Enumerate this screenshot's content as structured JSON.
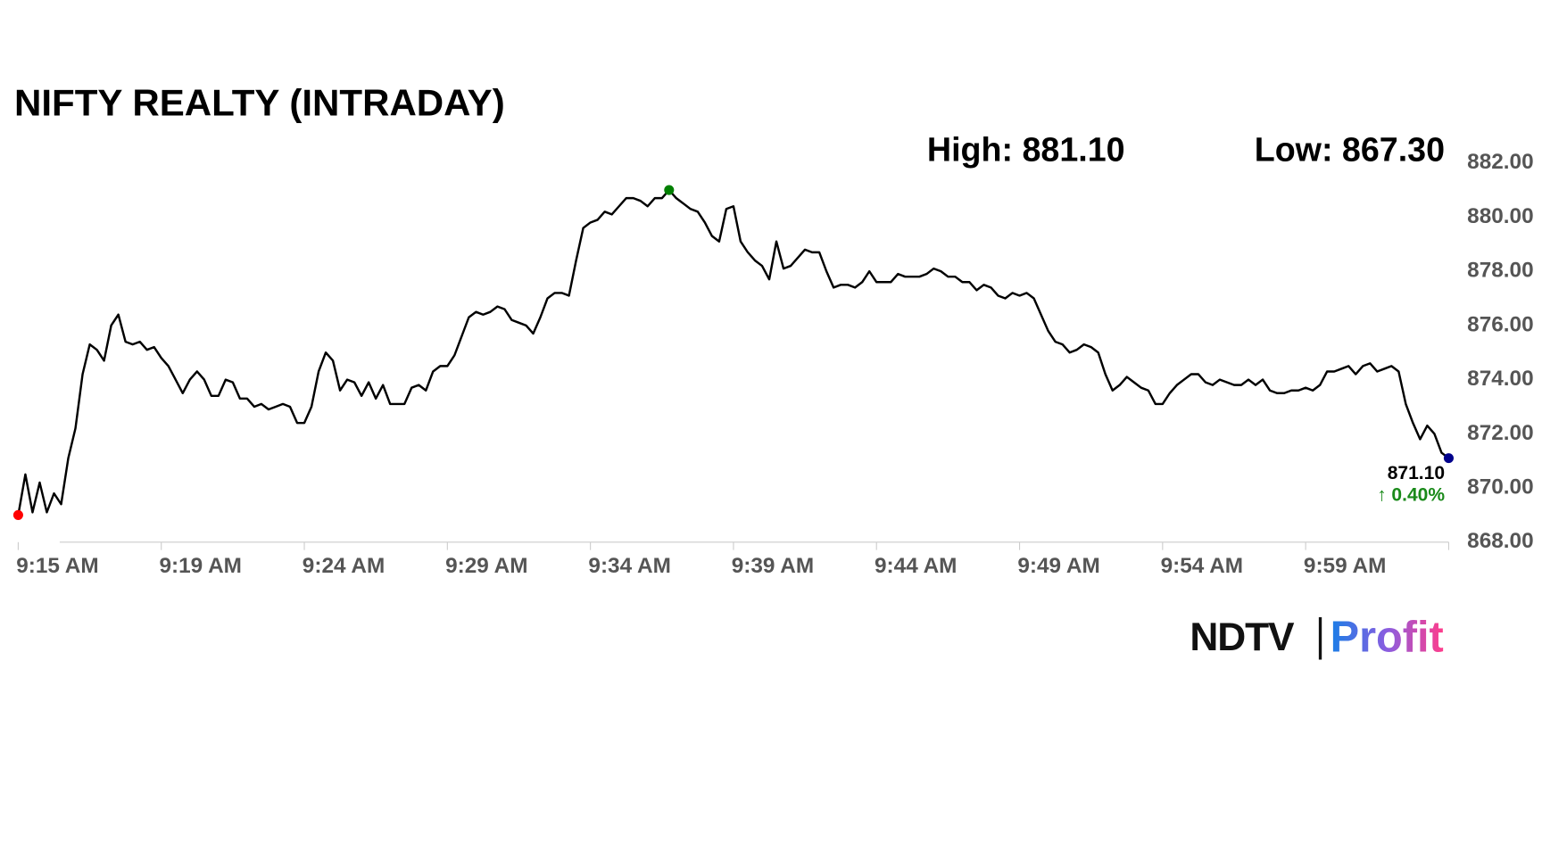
{
  "chart_data": {
    "type": "line",
    "title": "NIFTY REALTY (INTRADAY)",
    "high_text": "High: 881.10",
    "low_text": "Low: 867.30",
    "last_value_label": "871.10",
    "change_label": "↑ 0.40%",
    "logo_left": "NDTV",
    "logo_right": "Profit",
    "color": "#000000",
    "start_color": "#ff0000",
    "high_color": "#008000",
    "end_color": "#00008b",
    "high_index": 91,
    "x": [
      0,
      1,
      2,
      3,
      4,
      5,
      6,
      7,
      8,
      9,
      10,
      11,
      12,
      13,
      14,
      15,
      16,
      17,
      18,
      19,
      20,
      21,
      22,
      23,
      24,
      25,
      26,
      27,
      28,
      29,
      30,
      31,
      32,
      33,
      34,
      35,
      36,
      37,
      38,
      39,
      40,
      41,
      42,
      43,
      44,
      45,
      46,
      47,
      48,
      49,
      50,
      51,
      52,
      53,
      54,
      55,
      56,
      57,
      58,
      59,
      60,
      61,
      62,
      63,
      64,
      65,
      66,
      67,
      68,
      69,
      70,
      71,
      72,
      73,
      74,
      75,
      76,
      77,
      78,
      79,
      80,
      81,
      82,
      83,
      84,
      85,
      86,
      87,
      88,
      89,
      90,
      91,
      92,
      93,
      94,
      95,
      96,
      97,
      98,
      99,
      100,
      101,
      102,
      103,
      104,
      105,
      106,
      107,
      108,
      109,
      110,
      111,
      112,
      113,
      114,
      115,
      116,
      117,
      118,
      119,
      120,
      121,
      122,
      123,
      124,
      125,
      126,
      127,
      128,
      129,
      130,
      131,
      132,
      133,
      134,
      135,
      136,
      137,
      138,
      139,
      140,
      141,
      142,
      143,
      144,
      145,
      146,
      147,
      148,
      149,
      150,
      151,
      152,
      153,
      154,
      155,
      156,
      157,
      158,
      159,
      160,
      161,
      162,
      163,
      164,
      165,
      166,
      167,
      168,
      169,
      170,
      171,
      172,
      173,
      174,
      175,
      176,
      177,
      178,
      179,
      180,
      181,
      182,
      183,
      184,
      185,
      186,
      187,
      188,
      189,
      190,
      191,
      192,
      193,
      194,
      195,
      196,
      197,
      198,
      199,
      200
    ],
    "values": [
      869.0,
      870.5,
      869.1,
      870.2,
      869.1,
      869.8,
      869.4,
      871.1,
      872.2,
      874.2,
      875.3,
      875.1,
      874.7,
      876.0,
      876.4,
      875.4,
      875.3,
      875.4,
      875.1,
      875.2,
      874.8,
      874.5,
      874.0,
      873.5,
      874.0,
      874.3,
      874.0,
      873.4,
      873.4,
      874.0,
      873.9,
      873.3,
      873.3,
      873.0,
      873.1,
      872.9,
      873.0,
      873.1,
      873.0,
      872.4,
      872.4,
      873.0,
      874.3,
      875.0,
      874.7,
      873.6,
      874.0,
      873.9,
      873.4,
      873.9,
      873.3,
      873.8,
      873.1,
      873.1,
      873.1,
      873.7,
      873.8,
      873.6,
      874.3,
      874.5,
      874.5,
      874.9,
      875.6,
      876.3,
      876.5,
      876.4,
      876.5,
      876.7,
      876.6,
      876.2,
      876.1,
      876.0,
      875.7,
      876.3,
      877.0,
      877.2,
      877.2,
      877.1,
      878.4,
      879.6,
      879.8,
      879.9,
      880.2,
      880.1,
      880.4,
      880.7,
      880.7,
      880.6,
      880.4,
      880.7,
      880.7,
      881.0,
      880.7,
      880.5,
      880.3,
      880.2,
      879.8,
      879.3,
      879.1,
      880.3,
      880.4,
      879.1,
      878.7,
      878.4,
      878.2,
      877.7,
      879.1,
      878.1,
      878.2,
      878.5,
      878.8,
      878.7,
      878.7,
      878.0,
      877.4,
      877.5,
      877.5,
      877.4,
      877.6,
      878.0,
      877.6,
      877.6,
      877.6,
      877.9,
      877.8,
      877.8,
      877.8,
      877.9,
      878.1,
      878.0,
      877.8,
      877.8,
      877.6,
      877.6,
      877.3,
      877.5,
      877.4,
      877.1,
      877.0,
      877.2,
      877.1,
      877.2,
      877.0,
      876.4,
      875.8,
      875.4,
      875.3,
      875.0,
      875.1,
      875.3,
      875.2,
      875.0,
      874.2,
      873.6,
      873.8,
      874.1,
      873.9,
      873.7,
      873.6,
      873.1,
      873.1,
      873.5,
      873.8,
      874.0,
      874.2,
      874.2,
      873.9,
      873.8,
      874.0,
      873.9,
      873.8,
      873.8,
      874.0,
      873.8,
      874.0,
      873.6,
      873.5,
      873.5,
      873.6,
      873.6,
      873.7,
      873.6,
      873.8,
      874.3,
      874.3,
      874.4,
      874.5,
      874.2,
      874.5,
      874.6,
      874.3,
      874.4,
      874.5,
      874.3,
      873.1,
      872.4,
      871.8,
      872.3,
      872.0,
      871.3,
      871.1
    ],
    "xlim": [
      0,
      200
    ],
    "xticks": [
      {
        "value": 0,
        "label": "9:15 AM"
      },
      {
        "value": 20,
        "label": "9:19 AM"
      },
      {
        "value": 40,
        "label": "9:24 AM"
      },
      {
        "value": 60,
        "label": "9:29 AM"
      },
      {
        "value": 80,
        "label": "9:34 AM"
      },
      {
        "value": 100,
        "label": "9:39 AM"
      },
      {
        "value": 120,
        "label": "9:44 AM"
      },
      {
        "value": 140,
        "label": "9:49 AM"
      },
      {
        "value": 160,
        "label": "9:54 AM"
      },
      {
        "value": 180,
        "label": "9:59 AM"
      }
    ],
    "ylim": [
      868,
      882
    ],
    "yticks": [
      {
        "value": 868,
        "label": "868.00"
      },
      {
        "value": 870,
        "label": "870.00"
      },
      {
        "value": 872,
        "label": "872.00"
      },
      {
        "value": 874,
        "label": "874.00"
      },
      {
        "value": 876,
        "label": "876.00"
      },
      {
        "value": 878,
        "label": "878.00"
      },
      {
        "value": 880,
        "label": "880.00"
      },
      {
        "value": 882,
        "label": "882.00"
      }
    ],
    "grid": false
  }
}
